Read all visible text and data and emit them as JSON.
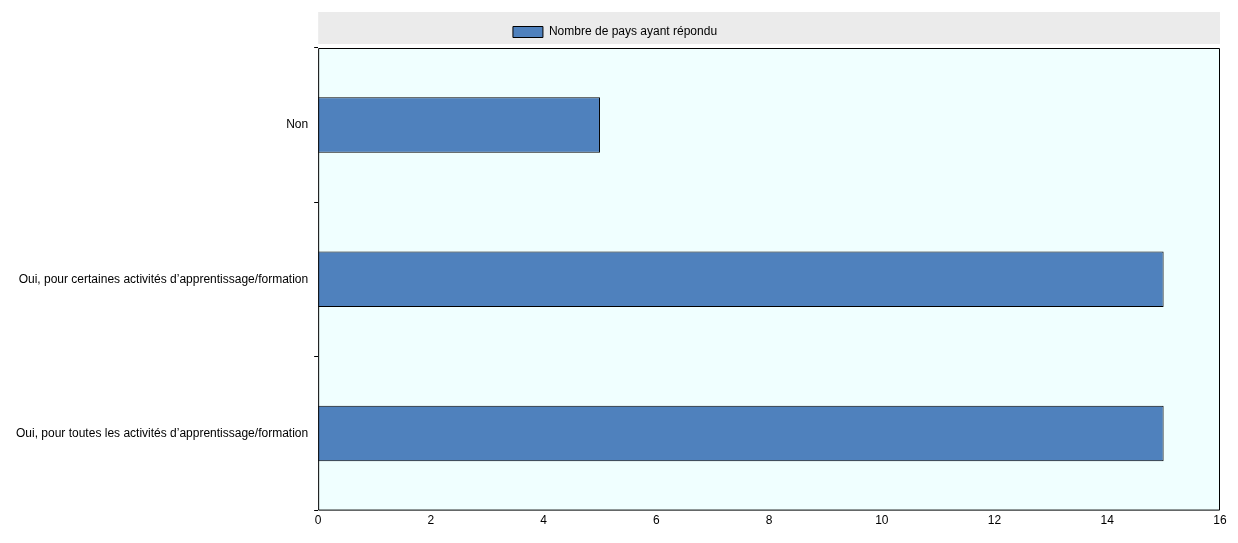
{
  "chart_data": {
    "type": "bar",
    "orientation": "horizontal",
    "categories": [
      "Non",
      "Oui, pour certaines activités d’apprentissage/formation",
      "Oui, pour toutes les activités d’apprentissage/formation"
    ],
    "series": [
      {
        "name": "Nombre de pays ayant répondu",
        "color": "#4f81bd",
        "values": [
          5,
          15,
          15
        ]
      }
    ],
    "xlim": [
      0,
      16
    ],
    "xticks": [
      0,
      2,
      4,
      6,
      8,
      10,
      12,
      14,
      16
    ],
    "legend": "top"
  }
}
